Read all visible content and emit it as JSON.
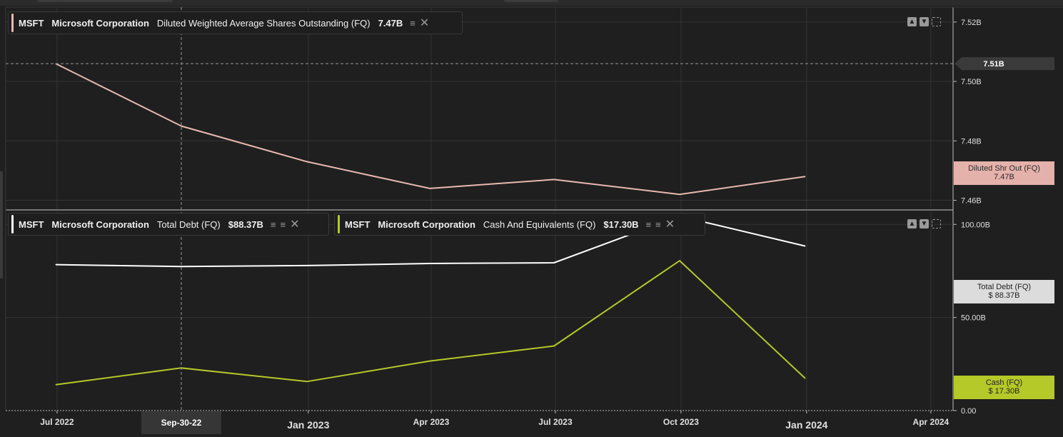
{
  "legends": {
    "shares": {
      "symbol": "MSFT",
      "company": "Microsoft Corporation",
      "metric": "Diluted Weighted Average Shares Outstanding (FQ)",
      "value": "7.47B",
      "color": "#e8b9b0"
    },
    "debt": {
      "symbol": "MSFT",
      "company": "Microsoft Corporation",
      "metric": "Total Debt (FQ)",
      "value": "$88.37B",
      "color": "#ffffff"
    },
    "cash": {
      "symbol": "MSFT",
      "company": "Microsoft Corporation",
      "metric": "Cash And Equivalents (FQ)",
      "value": "$17.30B",
      "color": "#b5c928"
    }
  },
  "icons": {
    "layers": "stack-icon",
    "close": "close-icon",
    "up": "move-up-icon",
    "down": "move-down-icon",
    "expand": "expand-icon"
  },
  "crosshair": {
    "x_label": "Sep-30-22",
    "y_label": "7.51B"
  },
  "tags": {
    "shares": {
      "line1": "Diluted Shr Out (FQ)",
      "line2": "7.47B",
      "bg": "#e5b2ab",
      "fg": "#2a2a2a"
    },
    "debt": {
      "line1": "Total Debt (FQ)",
      "line2": "$ 88.37B",
      "bg": "#dcdcdc",
      "fg": "#222222"
    },
    "cash": {
      "line1": "Cash (FQ)",
      "line2": "$ 17.30B",
      "bg": "#b5c928",
      "fg": "#222222"
    }
  },
  "chart_data": [
    {
      "type": "line",
      "x": [
        "2022-06-30",
        "2022-09-30",
        "2022-12-31",
        "2023-03-31",
        "2023-06-30",
        "2023-09-30",
        "2023-12-31"
      ],
      "series": [
        {
          "name": "Diluted Weighted Average Shares Outstanding (FQ)",
          "values": [
            7.506,
            7.485,
            7.473,
            7.464,
            7.467,
            7.462,
            7.468
          ],
          "color": "#e8b9b0"
        }
      ],
      "ylim": [
        7.457,
        7.525
      ],
      "yticks": [
        7.46,
        7.48,
        7.5,
        7.52
      ],
      "ytick_labels": [
        "7.46B",
        "7.48B",
        "7.50B",
        "7.52B"
      ],
      "unit": "B"
    },
    {
      "type": "line",
      "x": [
        "2022-06-30",
        "2022-09-30",
        "2022-12-31",
        "2023-03-31",
        "2023-06-30",
        "2023-09-30",
        "2023-12-31"
      ],
      "series": [
        {
          "name": "Total Debt (FQ)",
          "values": [
            78.4,
            77.4,
            77.9,
            79.0,
            79.4,
            104.4,
            88.37
          ],
          "color": "#ffffff"
        },
        {
          "name": "Cash And Equivalents (FQ)",
          "values": [
            13.9,
            22.9,
            15.6,
            26.6,
            34.7,
            80.5,
            17.3
          ],
          "color": "#b5c928"
        }
      ],
      "ylim": [
        0,
        107
      ],
      "yticks": [
        0,
        50,
        100
      ],
      "ytick_labels": [
        "0.00",
        "50.00B",
        "100.00B"
      ],
      "unit": "B"
    }
  ],
  "x_ticks": [
    {
      "label": "Jul 2022",
      "date": "2022-07-01",
      "bold": false
    },
    {
      "label": "Jan 2023",
      "date": "2023-01-01",
      "bold": true
    },
    {
      "label": "Apr 2023",
      "date": "2023-04-01",
      "bold": false
    },
    {
      "label": "Jul 2023",
      "date": "2023-07-01",
      "bold": false
    },
    {
      "label": "Oct 2023",
      "date": "2023-10-01",
      "bold": false
    },
    {
      "label": "Jan 2024",
      "date": "2024-01-01",
      "bold": true
    },
    {
      "label": "Apr 2024",
      "date": "2024-04-01",
      "bold": false
    }
  ]
}
